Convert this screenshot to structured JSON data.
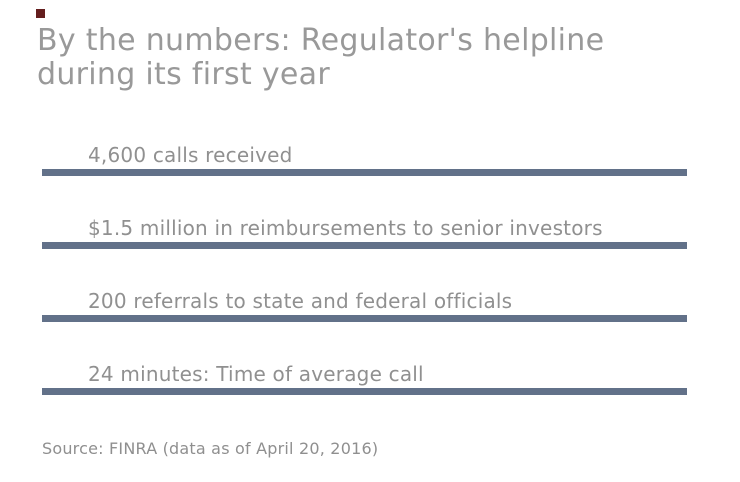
{
  "header": {
    "title_line1": "By the numbers: Regulator's helpline",
    "title_line2": "during its first year"
  },
  "stats": {
    "items": [
      {
        "label": "4,600 calls received"
      },
      {
        "label": "$1.5 million in reimbursements to senior investors"
      },
      {
        "label": "200 referrals to state and federal officials"
      },
      {
        "label": "24 minutes: Time of average call"
      }
    ]
  },
  "footer": {
    "source": "Source: FINRA (data as of April 20, 2016)"
  },
  "colors": {
    "background": "#ffffff",
    "title_text": "#999999",
    "stat_text": "#909090",
    "source_text": "#8f8f8f",
    "underline_bar": "#627189",
    "brand_square": "#641e1e"
  },
  "chart_data": {
    "type": "table",
    "title": "By the numbers: Regulator's helpline during its first year",
    "rows": [
      {
        "value": "4,600",
        "label": "calls received"
      },
      {
        "value": "$1.5 million",
        "label": "in reimbursements to senior investors"
      },
      {
        "value": "200",
        "label": "referrals to state and federal officials"
      },
      {
        "value": "24 minutes",
        "label": "Time of average call"
      }
    ],
    "source": "Source: FINRA (data as of April 20, 2016)",
    "layout": {
      "grid": "off",
      "axes": "none",
      "row_style": "text label above full-width horizontal rule"
    }
  }
}
